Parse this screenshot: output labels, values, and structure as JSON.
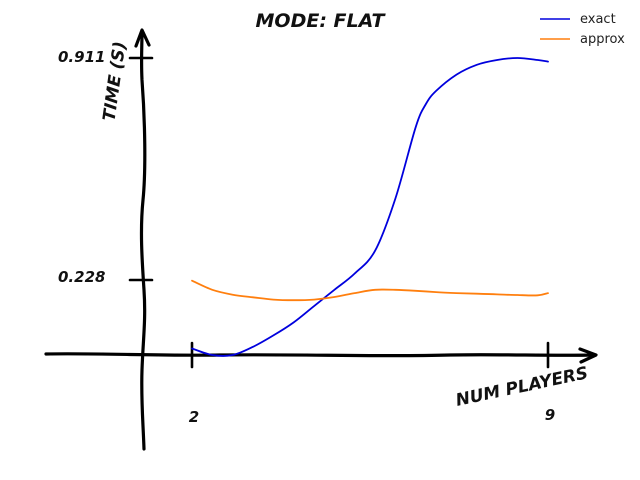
{
  "chart_data": {
    "type": "line",
    "title": "MODE: FLAT",
    "xlabel": "NUM PLAYERS",
    "ylabel": "TIME (S)",
    "x_ticks": [
      "2",
      "9"
    ],
    "y_ticks": [
      "0.228",
      "0.911"
    ],
    "xlim": [
      2,
      9
    ],
    "ylim": [
      0,
      0.911
    ],
    "legend_position": "top-right",
    "grid": false,
    "series": [
      {
        "name": "exact",
        "color": "#0000dd",
        "x": [
          2,
          2.4,
          2.8,
          3.2,
          3.6,
          4,
          4.4,
          4.8,
          5.2,
          5.6,
          6,
          6.4,
          6.6,
          6.8,
          7.2,
          7.6,
          8,
          8.4,
          8.8,
          9
        ],
        "y": [
          0.02,
          0.0,
          0.0,
          0.025,
          0.06,
          0.1,
          0.15,
          0.2,
          0.25,
          0.32,
          0.48,
          0.7,
          0.77,
          0.81,
          0.86,
          0.89,
          0.905,
          0.911,
          0.905,
          0.9
        ]
      },
      {
        "name": "approx",
        "color": "#ff7f0e",
        "x": [
          2,
          2.4,
          2.8,
          3.2,
          3.6,
          4,
          4.4,
          4.8,
          5.2,
          5.6,
          6,
          6.4,
          6.8,
          7.2,
          7.6,
          8,
          8.4,
          8.8,
          9
        ],
        "y": [
          0.228,
          0.2,
          0.185,
          0.177,
          0.17,
          0.168,
          0.17,
          0.178,
          0.19,
          0.2,
          0.2,
          0.197,
          0.193,
          0.19,
          0.188,
          0.186,
          0.184,
          0.183,
          0.19
        ]
      }
    ]
  }
}
